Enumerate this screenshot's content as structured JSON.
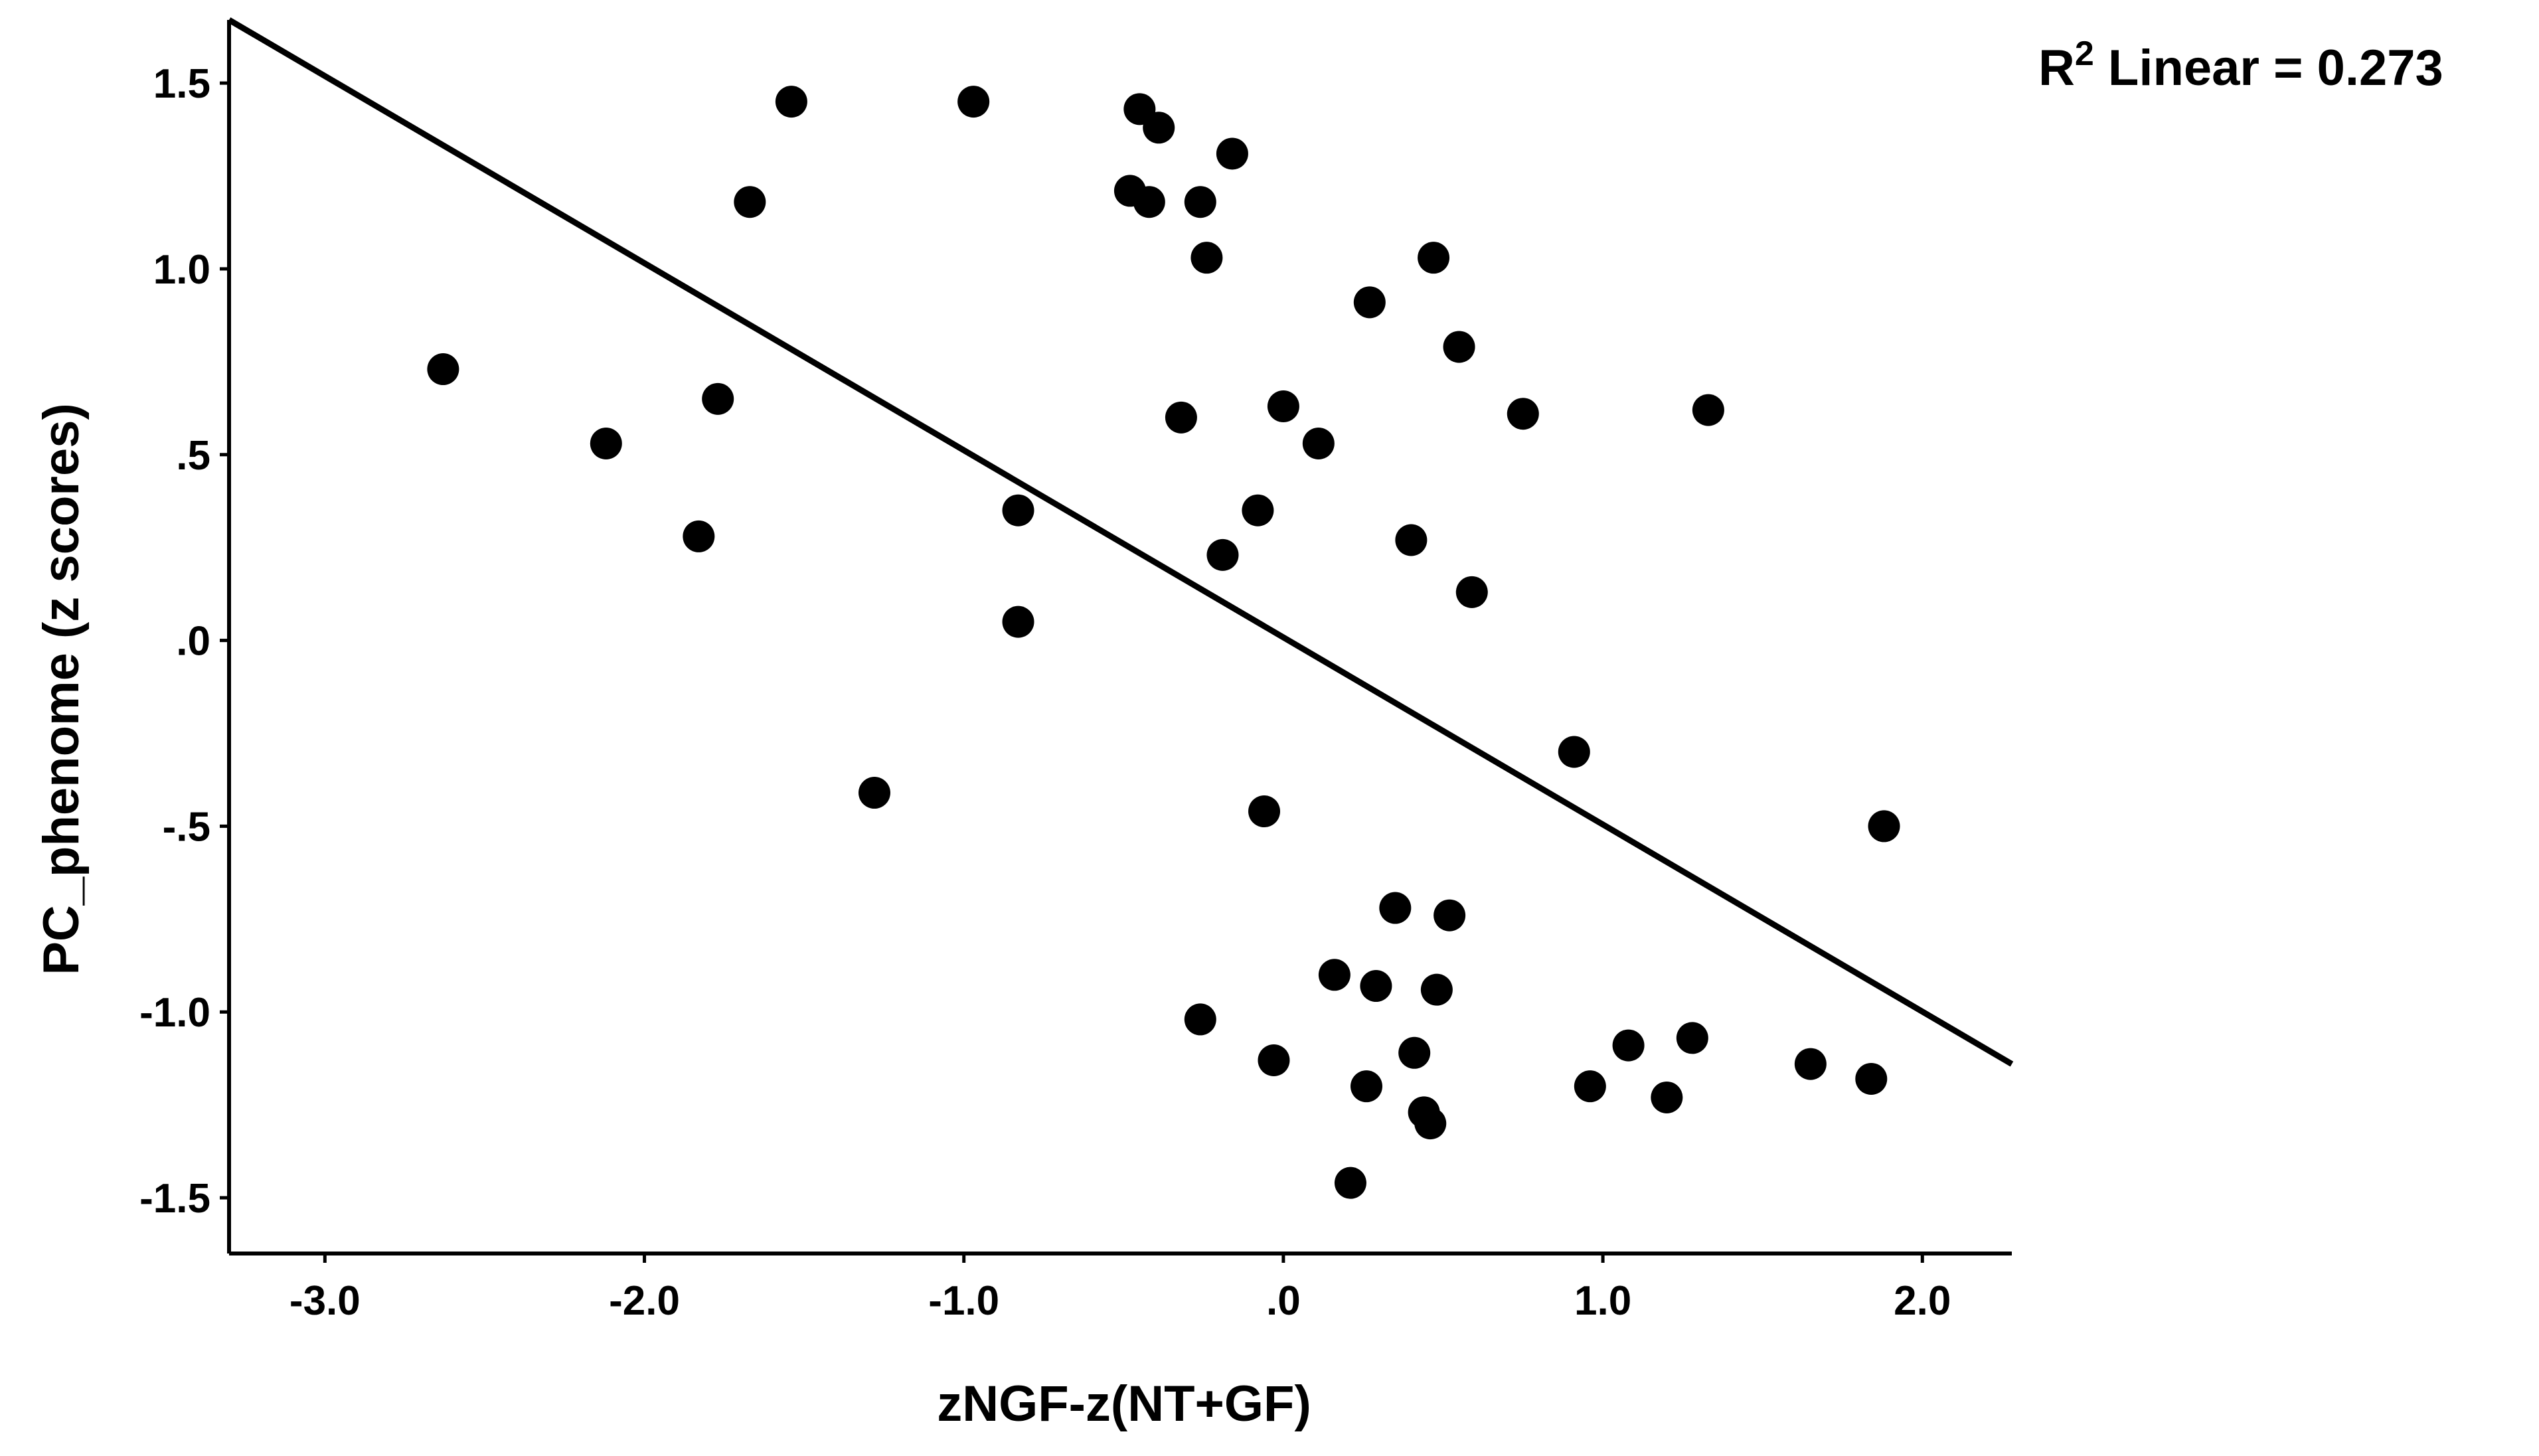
{
  "chart_data": {
    "type": "scatter",
    "title": "",
    "xlabel": "zNGF-z(NT+GF)",
    "ylabel": "PC_phenome (z scores)",
    "xlim": [
      -3.3,
      2.28
    ],
    "ylim": [
      -1.65,
      1.67
    ],
    "x_ticks": [
      -3.0,
      -2.0,
      -1.0,
      0.0,
      1.0,
      2.0
    ],
    "x_tick_labels": [
      "-3.0",
      "-2.0",
      "-1.0",
      ".0",
      "1.0",
      "2.0"
    ],
    "y_ticks": [
      1.5,
      1.0,
      0.5,
      0.0,
      -0.5,
      -1.0,
      -1.5
    ],
    "y_tick_labels": [
      "1.5",
      "1.0",
      ".5",
      ".0",
      "-.5",
      "-1.0",
      "-1.5"
    ],
    "grid": false,
    "legend": "none",
    "annotation": {
      "prefix": "R",
      "superscript": "2",
      "text": " Linear = 0.273"
    },
    "fit_line": {
      "x": [
        -3.3,
        2.28
      ],
      "y": [
        1.67,
        -1.14
      ]
    },
    "marker_color": "#000000",
    "points": [
      {
        "x": -2.63,
        "y": 0.73
      },
      {
        "x": -2.12,
        "y": 0.53
      },
      {
        "x": -1.77,
        "y": 0.65
      },
      {
        "x": -1.83,
        "y": 0.28
      },
      {
        "x": -1.67,
        "y": 1.18
      },
      {
        "x": -1.54,
        "y": 1.45
      },
      {
        "x": -1.28,
        "y": -0.41
      },
      {
        "x": -0.97,
        "y": 1.45
      },
      {
        "x": -0.83,
        "y": 0.35
      },
      {
        "x": -0.83,
        "y": 0.05
      },
      {
        "x": -0.48,
        "y": 1.21
      },
      {
        "x": -0.45,
        "y": 1.43
      },
      {
        "x": -0.42,
        "y": 1.18
      },
      {
        "x": -0.39,
        "y": 1.38
      },
      {
        "x": -0.32,
        "y": 0.6
      },
      {
        "x": -0.26,
        "y": 1.18
      },
      {
        "x": -0.24,
        "y": 1.03
      },
      {
        "x": -0.26,
        "y": -1.02
      },
      {
        "x": -0.19,
        "y": 0.23
      },
      {
        "x": -0.16,
        "y": 1.31
      },
      {
        "x": -0.08,
        "y": 0.35
      },
      {
        "x": -0.06,
        "y": -0.46
      },
      {
        "x": -0.03,
        "y": -1.13
      },
      {
        "x": 0.0,
        "y": 0.63
      },
      {
        "x": 0.11,
        "y": 0.53
      },
      {
        "x": 0.16,
        "y": -0.9
      },
      {
        "x": 0.21,
        "y": -1.46
      },
      {
        "x": 0.26,
        "y": -1.2
      },
      {
        "x": 0.27,
        "y": 0.91
      },
      {
        "x": 0.29,
        "y": -0.93
      },
      {
        "x": 0.35,
        "y": -0.72
      },
      {
        "x": 0.4,
        "y": 0.27
      },
      {
        "x": 0.41,
        "y": -1.11
      },
      {
        "x": 0.44,
        "y": -1.27
      },
      {
        "x": 0.46,
        "y": -1.3
      },
      {
        "x": 0.47,
        "y": 1.03
      },
      {
        "x": 0.48,
        "y": -0.94
      },
      {
        "x": 0.52,
        "y": -0.74
      },
      {
        "x": 0.55,
        "y": 0.79
      },
      {
        "x": 0.59,
        "y": 0.13
      },
      {
        "x": 0.75,
        "y": 0.61
      },
      {
        "x": 0.91,
        "y": -0.3
      },
      {
        "x": 0.96,
        "y": -1.2
      },
      {
        "x": 1.08,
        "y": -1.09
      },
      {
        "x": 1.2,
        "y": -1.23
      },
      {
        "x": 1.28,
        "y": -1.07
      },
      {
        "x": 1.33,
        "y": 0.62
      },
      {
        "x": 1.65,
        "y": -1.14
      },
      {
        "x": 1.84,
        "y": -1.18
      },
      {
        "x": 1.88,
        "y": -0.5
      }
    ]
  }
}
